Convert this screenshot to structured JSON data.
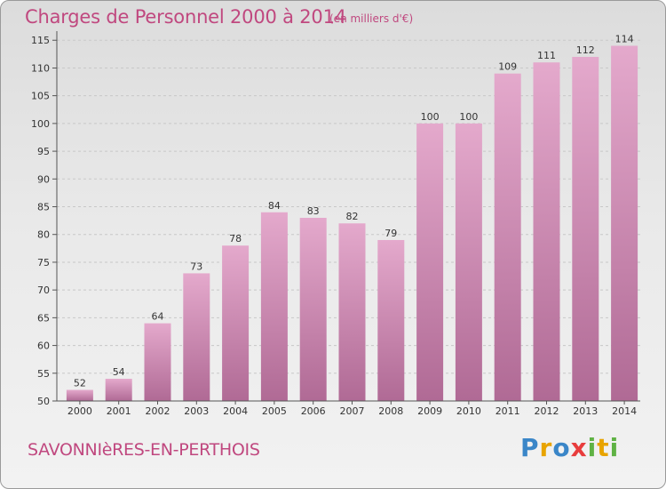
{
  "chart_data": {
    "type": "bar",
    "title": "Charges de Personnel 2000 à 2014",
    "subtitle": "(en milliers d'€)",
    "categories": [
      "2000",
      "2001",
      "2002",
      "2003",
      "2004",
      "2005",
      "2006",
      "2007",
      "2008",
      "2009",
      "2010",
      "2011",
      "2012",
      "2013",
      "2014"
    ],
    "values": [
      52,
      54,
      64,
      73,
      78,
      84,
      83,
      82,
      79,
      100,
      100,
      109,
      111,
      112,
      114
    ],
    "yticks": [
      50,
      55,
      60,
      65,
      70,
      75,
      80,
      85,
      90,
      95,
      100,
      105,
      110,
      115
    ],
    "ylim": [
      50,
      116
    ],
    "xlabel": "",
    "ylabel": "",
    "grid": true,
    "bar_color_top": "#e4a9cc",
    "bar_color_bottom": "#b06a95"
  },
  "footer": {
    "city": "SAVONNIèRES-EN-PERTHOIS",
    "logo_letters": [
      {
        "ch": "P",
        "color": "#3a86c8"
      },
      {
        "ch": "r",
        "color": "#e8a400"
      },
      {
        "ch": "o",
        "color": "#3a86c8"
      },
      {
        "ch": "x",
        "color": "#e83d3d"
      },
      {
        "ch": "i",
        "color": "#5fb244"
      },
      {
        "ch": "t",
        "color": "#e8a400"
      },
      {
        "ch": "i",
        "color": "#5fb244"
      }
    ]
  }
}
